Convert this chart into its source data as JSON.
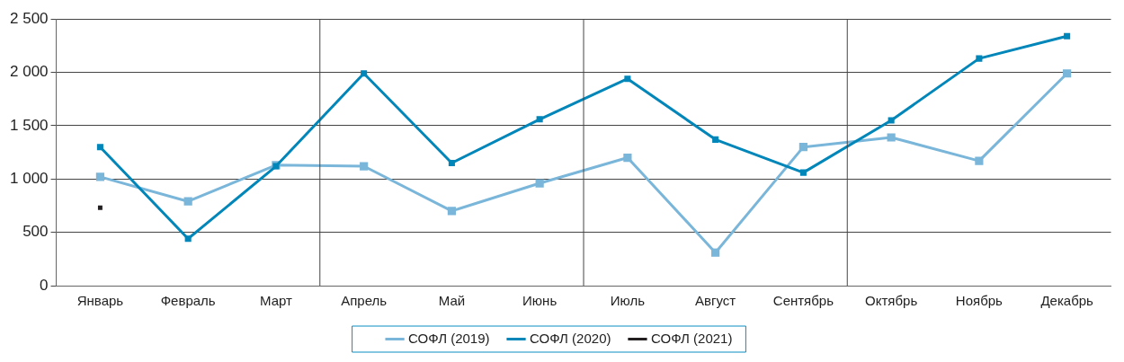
{
  "chart_data": {
    "type": "line",
    "categories": [
      "Январь",
      "Февраль",
      "Март",
      "Апрель",
      "Май",
      "Июнь",
      "Июль",
      "Август",
      "Сентябрь",
      "Октябрь",
      "Ноябрь",
      "Декабрь"
    ],
    "series": [
      {
        "name": "СОФЛ (2019)",
        "color": "#7ab6d9",
        "values": [
          1020,
          790,
          1130,
          1120,
          700,
          960,
          1200,
          310,
          1300,
          1390,
          1170,
          1990
        ]
      },
      {
        "name": "СОФЛ (2020)",
        "color": "#0086b8",
        "values": [
          1300,
          440,
          1120,
          1990,
          1150,
          1560,
          1940,
          1370,
          1060,
          1550,
          2130,
          2340
        ]
      },
      {
        "name": "СОФЛ (2021)",
        "color": "#231f20",
        "values": [
          730,
          null,
          null,
          null,
          null,
          null,
          null,
          null,
          null,
          null,
          null,
          null
        ]
      }
    ],
    "ylim": [
      0,
      2500
    ],
    "yticks": [
      0,
      {
        "value": 500,
        "label": "500"
      },
      {
        "value": 1000,
        "label": "1 000"
      },
      {
        "value": 1500,
        "label": "1 500"
      },
      {
        "value": 2000,
        "label": "2 000"
      },
      {
        "value": 2500,
        "label": "2 500"
      }
    ],
    "grid": "y",
    "legend": "bottom",
    "marker": "square",
    "line_style": "solid"
  }
}
